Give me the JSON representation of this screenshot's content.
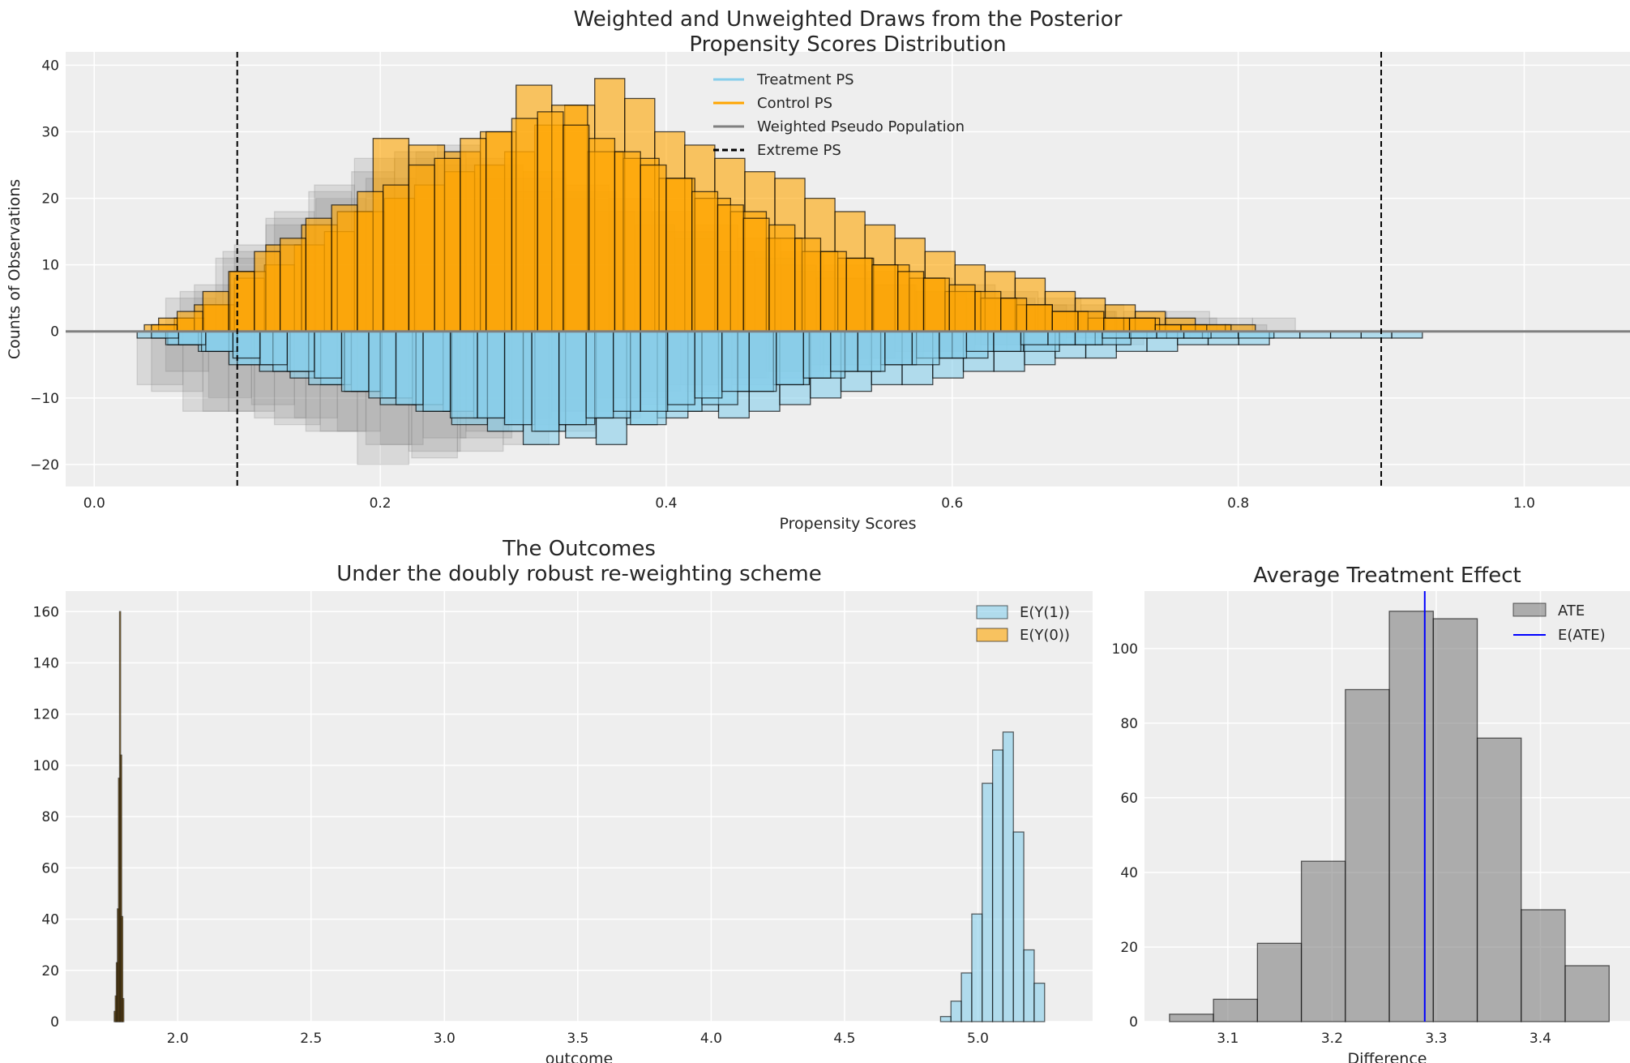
{
  "colors": {
    "treatment": "#87CEEB",
    "control": "#FFA500",
    "weighted": "#808080",
    "axes_bg": "#EEEEEE",
    "grid": "#FFFFFF",
    "mean_line": "#0000FF",
    "ate_bar": "#808080"
  },
  "chart_data": [
    {
      "type": "bar",
      "title": "Weighted and Unweighted Draws from the Posterior\nPropensity Scores Distribution",
      "title_lines": [
        "Weighted and Unweighted Draws from the Posterior",
        "Propensity Scores Distribution"
      ],
      "xlabel": "Propensity Scores",
      "ylabel": "Counts of Observations",
      "xlim": [
        -0.02,
        1.074
      ],
      "ylim": [
        -23.3,
        42
      ],
      "xticks": [
        0.0,
        0.2,
        0.4,
        0.6,
        0.8,
        1.0
      ],
      "xtick_labels": [
        "0.0",
        "0.2",
        "0.4",
        "0.6",
        "0.8",
        "1.0"
      ],
      "yticks": [
        -20,
        -10,
        0,
        10,
        20,
        30,
        40
      ],
      "ytick_labels": [
        "−20",
        "−10",
        "0",
        "10",
        "20",
        "30",
        "40"
      ],
      "grid": true,
      "legend_position": "top-center",
      "legend": [
        "Treatment PS",
        "Control PS",
        "Weighted Pseudo Population",
        "Extreme PS"
      ],
      "extreme_ps_lines": [
        0.1,
        0.9
      ],
      "control_draws": [
        {
          "start": 0.035,
          "width": 0.021,
          "counts": [
            1,
            2,
            4,
            8,
            10,
            13,
            15,
            18,
            20,
            22,
            24,
            25,
            27,
            31,
            34,
            38,
            35,
            30,
            28,
            26,
            24,
            23,
            20,
            18,
            16,
            14,
            12,
            10,
            9,
            8,
            6,
            5,
            4,
            3,
            2,
            1,
            1
          ]
        },
        {
          "start": 0.045,
          "width": 0.025,
          "counts": [
            2,
            4,
            9,
            13,
            16,
            18,
            29,
            28,
            27,
            30,
            37,
            34,
            27,
            26,
            23,
            20,
            18,
            14,
            12,
            11,
            10,
            8,
            6,
            5,
            4,
            3,
            2,
            2,
            1,
            1
          ]
        },
        {
          "start": 0.04,
          "width": 0.018,
          "counts": [
            1,
            3,
            6,
            9,
            12,
            14,
            17,
            19,
            21,
            22,
            25,
            26,
            29,
            30,
            32,
            33,
            31,
            29,
            27,
            25,
            23,
            21,
            19,
            17,
            16,
            14,
            12,
            11,
            10,
            9,
            8,
            7,
            6,
            5,
            4,
            3,
            3,
            2,
            2,
            1,
            1
          ]
        }
      ],
      "treatment_draws": [
        {
          "start": 0.03,
          "width": 0.0214,
          "counts": [
            1,
            2,
            3,
            5,
            6,
            7,
            8,
            9,
            10,
            11,
            12,
            13,
            14,
            15,
            16,
            17,
            14,
            13,
            12,
            13,
            12,
            11,
            10,
            9,
            8,
            8,
            7,
            6,
            6,
            5,
            4,
            4,
            3,
            3,
            2,
            2,
            2,
            1,
            1,
            1,
            1,
            1
          ]
        },
        {
          "start": 0.05,
          "width": 0.025,
          "counts": [
            2,
            3,
            5,
            6,
            8,
            9,
            11,
            12,
            14,
            15,
            17,
            14,
            13,
            14,
            12,
            11,
            9,
            8,
            7,
            6,
            5,
            4,
            4,
            3,
            3,
            2,
            2,
            1,
            1,
            1,
            1
          ]
        },
        {
          "start": 0.04,
          "width": 0.019,
          "counts": [
            1,
            2,
            3,
            4,
            5,
            6,
            7,
            9,
            10,
            11,
            12,
            13,
            13,
            14,
            15,
            14,
            13,
            12,
            12,
            11,
            10,
            9,
            9,
            8,
            7,
            6,
            6,
            5,
            5,
            4,
            3,
            3,
            2,
            2,
            2,
            1,
            1,
            1,
            1
          ]
        }
      ],
      "weighted_draws_control": [
        {
          "start": 0.06,
          "width": 0.03,
          "counts": [
            6,
            12,
            17,
            21,
            24,
            26,
            28,
            25,
            24,
            22,
            20,
            18,
            16,
            14,
            12,
            10,
            9,
            8,
            7,
            6,
            5,
            4,
            3,
            3,
            2,
            2
          ]
        },
        {
          "start": 0.05,
          "width": 0.035,
          "counts": [
            5,
            11,
            16,
            20,
            23,
            27,
            26,
            23,
            21,
            18,
            15,
            12,
            10,
            8,
            7,
            6,
            5,
            4,
            3,
            2,
            2,
            1
          ]
        },
        {
          "start": 0.07,
          "width": 0.028,
          "counts": [
            7,
            13,
            18,
            22,
            26,
            27,
            25,
            23,
            21,
            20,
            18,
            16,
            14,
            12,
            11,
            9,
            8,
            7,
            6,
            6,
            5,
            4,
            3,
            2
          ]
        }
      ],
      "weighted_draws_treatment": [
        {
          "start": 0.03,
          "width": 0.032,
          "counts": [
            8,
            12,
            12,
            14,
            15,
            17,
            19,
            18,
            17,
            15,
            13,
            11,
            9,
            8,
            7,
            6,
            5,
            4,
            3,
            3,
            2,
            2,
            1,
            1
          ]
        },
        {
          "start": 0.05,
          "width": 0.03,
          "counts": [
            6,
            10,
            11,
            13,
            15,
            17,
            16,
            15,
            13,
            12,
            10,
            9,
            8,
            7,
            6,
            5,
            4,
            3,
            3,
            2,
            2,
            1,
            1
          ]
        },
        {
          "start": 0.04,
          "width": 0.036,
          "counts": [
            9,
            12,
            13,
            15,
            20,
            18,
            16,
            14,
            12,
            10,
            8,
            7,
            6,
            5,
            4,
            3,
            2,
            2,
            1
          ]
        }
      ]
    },
    {
      "type": "bar",
      "title_lines": [
        "The Outcomes",
        "Under the doubly robust re-weighting scheme"
      ],
      "xlabel": "outcome",
      "ylabel": "",
      "xlim": [
        1.58,
        5.43
      ],
      "ylim": [
        0,
        168
      ],
      "xticks": [
        2.0,
        2.5,
        3.0,
        3.5,
        4.0,
        4.5,
        5.0
      ],
      "xtick_labels": [
        "2.0",
        "2.5",
        "3.0",
        "3.5",
        "4.0",
        "4.5",
        "5.0"
      ],
      "yticks": [
        0,
        20,
        40,
        60,
        80,
        100,
        120,
        140,
        160
      ],
      "ytick_labels": [
        "0",
        "20",
        "40",
        "60",
        "80",
        "100",
        "120",
        "140",
        "160"
      ],
      "grid": true,
      "legend_position": "top-right",
      "series": [
        {
          "name": "E(Y(1))",
          "start": 4.86,
          "width": 0.039,
          "values": [
            2,
            8,
            19,
            42,
            93,
            106,
            113,
            74,
            28,
            15
          ]
        },
        {
          "name": "E(Y(0))",
          "start": 1.762,
          "width": 0.004,
          "values": [
            4,
            10,
            23,
            44,
            95,
            160,
            104,
            41,
            9
          ]
        }
      ]
    },
    {
      "type": "bar",
      "title_lines": [
        "Average Treatment Effect"
      ],
      "xlabel": "Difference",
      "ylabel": "",
      "xlim": [
        3.02,
        3.486
      ],
      "ylim": [
        0,
        115.4
      ],
      "xticks": [
        3.1,
        3.2,
        3.3,
        3.4
      ],
      "xtick_labels": [
        "3.1",
        "3.2",
        "3.3",
        "3.4"
      ],
      "yticks": [
        0,
        20,
        40,
        60,
        80,
        100
      ],
      "ytick_labels": [
        "0",
        "20",
        "40",
        "60",
        "80",
        "100"
      ],
      "grid": true,
      "legend_position": "top-right",
      "series": [
        {
          "name": "ATE",
          "start": 3.044,
          "width": 0.0422,
          "values": [
            2,
            6,
            21,
            43,
            89,
            110,
            108,
            76,
            30,
            15
          ]
        }
      ],
      "mean_line": {
        "name": "E(ATE)",
        "value": 3.289
      }
    }
  ]
}
